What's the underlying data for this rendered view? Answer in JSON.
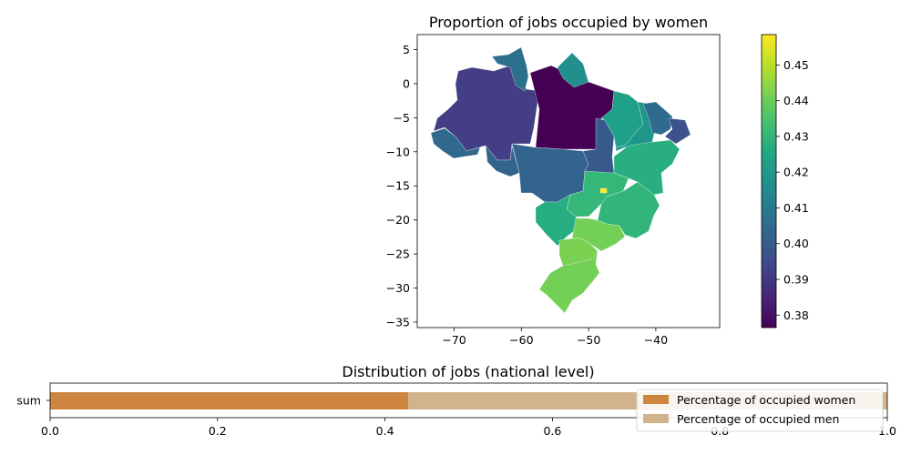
{
  "chart_data": [
    {
      "type": "choropleth",
      "title": "Proportion of jobs occupied by women",
      "xlabel": "",
      "ylabel": "",
      "xlim": [
        -75.5,
        -30.5
      ],
      "ylim": [
        -35.8,
        7.2
      ],
      "xticks": [
        -70,
        -60,
        -50,
        -40
      ],
      "yticks": [
        5,
        0,
        -5,
        -10,
        -15,
        -20,
        -25,
        -30,
        -35
      ],
      "colormap": "viridis",
      "colorbar": {
        "vmin": 0.3765,
        "vmax": 0.4585,
        "ticks": [
          0.38,
          0.39,
          0.4,
          0.41,
          0.42,
          0.43,
          0.44,
          0.45
        ],
        "tick_labels": [
          "0.38",
          "0.39",
          "0.40",
          "0.41",
          "0.42",
          "0.43",
          "0.44",
          "0.45"
        ]
      },
      "regions": [
        {
          "value": 0.392,
          "color": "#433e85"
        },
        {
          "value": 0.405,
          "color": "#31688e"
        },
        {
          "value": 0.403,
          "color": "#33638d"
        },
        {
          "value": 0.408,
          "color": "#2d708e"
        },
        {
          "value": 0.377,
          "color": "#440154"
        },
        {
          "value": 0.418,
          "color": "#21908d"
        },
        {
          "value": 0.404,
          "color": "#32648e"
        },
        {
          "value": 0.399,
          "color": "#38598c"
        },
        {
          "value": 0.423,
          "color": "#1fa187"
        },
        {
          "value": 0.42,
          "color": "#1f968b"
        },
        {
          "value": 0.406,
          "color": "#2f6b8e"
        },
        {
          "value": 0.397,
          "color": "#3b528b"
        },
        {
          "value": 0.427,
          "color": "#29af7f"
        },
        {
          "value": 0.43,
          "color": "#35b779"
        },
        {
          "value": 0.429,
          "color": "#31b57b"
        },
        {
          "value": 0.426,
          "color": "#26ad81"
        },
        {
          "value": 0.441,
          "color": "#73d056"
        },
        {
          "value": 0.443,
          "color": "#7ad151"
        },
        {
          "value": 0.457,
          "color": "#fde725"
        }
      ]
    },
    {
      "type": "bar",
      "orientation": "horizontal",
      "stacked": true,
      "title": "Distribution of jobs (national level)",
      "categories": [
        "sum"
      ],
      "xlim": [
        0,
        1
      ],
      "xticks": [
        0.0,
        0.2,
        0.4,
        0.6,
        0.8,
        1.0
      ],
      "xtick_labels": [
        "0.0",
        "0.2",
        "0.4",
        "0.6",
        "0.8",
        "1.0"
      ],
      "legend_position": "lower-right",
      "series": [
        {
          "name": "Percentage of occupied women",
          "values": [
            0.428
          ],
          "color": "#cd853f"
        },
        {
          "name": "Percentage of occupied men",
          "values": [
            0.572
          ],
          "color": "#d2b48c"
        }
      ]
    }
  ]
}
